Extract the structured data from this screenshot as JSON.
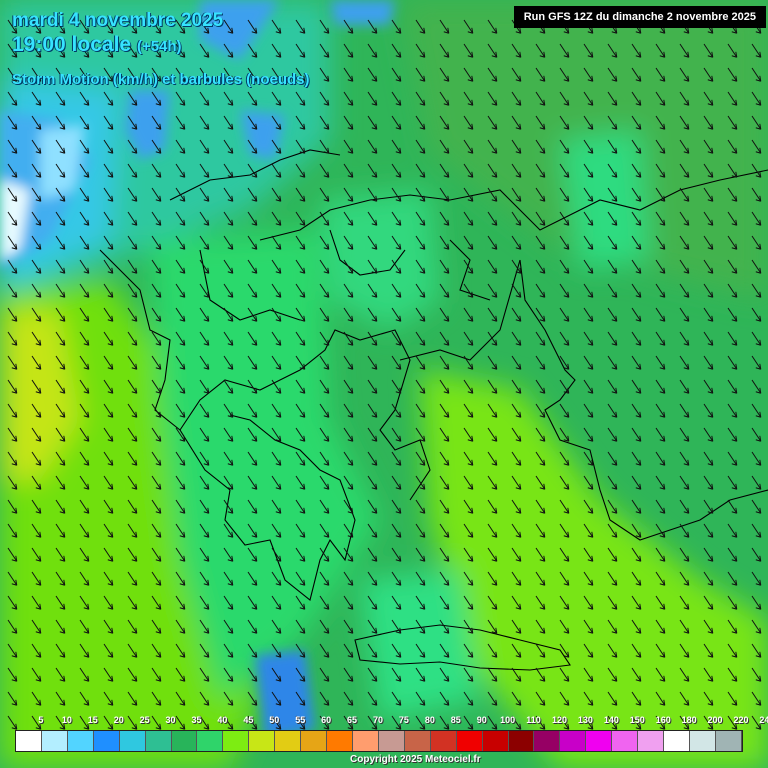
{
  "header": {
    "date": "mardi 4 novembre 2025",
    "time": "19:00 locale",
    "lead": "(+54h)",
    "parameter": "Storm Motion (km/h) et barbules (noeuds)",
    "run": "Run GFS 12Z du dimanche 2 novembre 2025"
  },
  "legend": {
    "labels": [
      "5",
      "10",
      "15",
      "20",
      "25",
      "30",
      "35",
      "40",
      "45",
      "50",
      "55",
      "60",
      "65",
      "70",
      "75",
      "80",
      "85",
      "90",
      "100",
      "110",
      "120",
      "130",
      "140",
      "150",
      "160",
      "180",
      "200",
      "220",
      "240"
    ],
    "colors": [
      "#ffffff",
      "#b3eeff",
      "#52d4ff",
      "#1f8fff",
      "#2fc8e0",
      "#2ebf93",
      "#28b45a",
      "#2fd46a",
      "#7ded12",
      "#c8e616",
      "#e2cc14",
      "#e6a516",
      "#ff7a00",
      "#ff9d6e",
      "#c79a93",
      "#c86448",
      "#d23223",
      "#f00000",
      "#c80000",
      "#8c0000",
      "#960064",
      "#c800c8",
      "#f000f0",
      "#f064f0",
      "#f0a0f0",
      "#ffffff",
      "#d2e6e6",
      "#a0b4b4"
    ]
  },
  "copyright": "Copyright 2025 Meteociel.fr"
}
